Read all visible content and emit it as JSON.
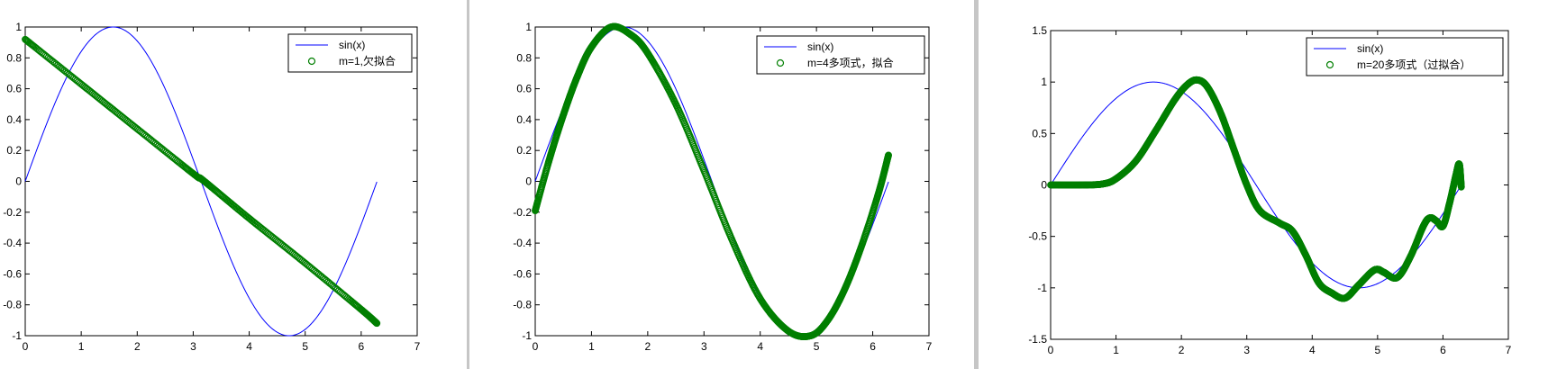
{
  "colors": {
    "sin_line": "#0000ff",
    "fit_markers": "#007f00",
    "window_bg": "#c8c8c8",
    "plot_bg": "#ffffff"
  },
  "chart_data": [
    {
      "type": "scatter",
      "title": "",
      "xlabel": "",
      "ylabel": "",
      "xlim": [
        0,
        7
      ],
      "ylim": [
        -1,
        1
      ],
      "xticks": [
        0,
        1,
        2,
        3,
        4,
        5,
        6,
        7
      ],
      "yticks": [
        -1,
        -0.8,
        -0.6,
        -0.4,
        -0.2,
        0,
        0.2,
        0.4,
        0.6,
        0.8,
        1
      ],
      "legend_position": "top-right",
      "series": [
        {
          "name": "sin(x)",
          "kind": "line",
          "x": [
            0,
            0.39,
            0.79,
            1.18,
            1.57,
            1.96,
            2.36,
            2.75,
            3.14,
            3.53,
            3.93,
            4.32,
            4.71,
            5.11,
            5.5,
            5.89,
            6.28
          ],
          "y": [
            0,
            0.383,
            0.707,
            0.924,
            1,
            0.924,
            0.707,
            0.383,
            0,
            -0.383,
            -0.707,
            -0.924,
            -1,
            -0.924,
            -0.707,
            -0.383,
            0
          ]
        },
        {
          "name": "m=1,欠拟合",
          "kind": "markers",
          "x": [
            0,
            1,
            2,
            3,
            3.2,
            4,
            5,
            6,
            6.28
          ],
          "y": [
            0.92,
            0.63,
            0.34,
            0.05,
            0,
            -0.24,
            -0.53,
            -0.83,
            -0.92
          ]
        }
      ]
    },
    {
      "type": "scatter",
      "title": "",
      "xlabel": "",
      "ylabel": "",
      "xlim": [
        0,
        7
      ],
      "ylim": [
        -1,
        1
      ],
      "xticks": [
        0,
        1,
        2,
        3,
        4,
        5,
        6,
        7
      ],
      "yticks": [
        -1,
        -0.8,
        -0.6,
        -0.4,
        -0.2,
        0,
        0.2,
        0.4,
        0.6,
        0.8,
        1
      ],
      "legend_position": "top-right",
      "series": [
        {
          "name": "sin(x)",
          "kind": "line",
          "x": [
            0,
            0.39,
            0.79,
            1.18,
            1.57,
            1.96,
            2.36,
            2.75,
            3.14,
            3.53,
            3.93,
            4.32,
            4.71,
            5.11,
            5.5,
            5.89,
            6.28
          ],
          "y": [
            0,
            0.383,
            0.707,
            0.924,
            1,
            0.924,
            0.707,
            0.383,
            0,
            -0.383,
            -0.707,
            -0.924,
            -1,
            -0.924,
            -0.707,
            -0.383,
            0
          ]
        },
        {
          "name": "m=4多项式，拟合",
          "kind": "markers",
          "x": [
            0,
            0.25,
            0.5,
            0.75,
            1,
            1.35,
            1.7,
            2,
            2.5,
            3,
            3.5,
            4,
            4.5,
            4.9,
            5.2,
            5.5,
            5.8,
            6.1,
            6.28
          ],
          "y": [
            -0.19,
            0.14,
            0.43,
            0.68,
            0.87,
            1.0,
            0.95,
            0.83,
            0.5,
            0.07,
            -0.38,
            -0.76,
            -0.97,
            -1.0,
            -0.9,
            -0.7,
            -0.42,
            -0.08,
            0.17
          ]
        }
      ]
    },
    {
      "type": "scatter",
      "title": "",
      "xlabel": "",
      "ylabel": "",
      "xlim": [
        0,
        7
      ],
      "ylim": [
        -1.5,
        1.5
      ],
      "xticks": [
        0,
        1,
        2,
        3,
        4,
        5,
        6,
        7
      ],
      "yticks": [
        -1.5,
        -1,
        -0.5,
        0,
        0.5,
        1,
        1.5
      ],
      "legend_position": "top-right",
      "series": [
        {
          "name": "sin(x)",
          "kind": "line",
          "x": [
            0,
            0.39,
            0.79,
            1.18,
            1.57,
            1.96,
            2.36,
            2.75,
            3.14,
            3.53,
            3.93,
            4.32,
            4.71,
            5.11,
            5.5,
            5.89,
            6.28
          ],
          "y": [
            0,
            0.383,
            0.707,
            0.924,
            1,
            0.924,
            0.707,
            0.383,
            0,
            -0.383,
            -0.707,
            -0.924,
            -1,
            -0.924,
            -0.707,
            -0.383,
            0
          ]
        },
        {
          "name": "m=20多项式（过拟合）",
          "kind": "markers",
          "x": [
            0,
            0.5,
            0.8,
            1.0,
            1.3,
            1.6,
            1.9,
            2.1,
            2.25,
            2.4,
            2.6,
            2.8,
            3.0,
            3.2,
            3.5,
            3.7,
            3.9,
            4.1,
            4.3,
            4.5,
            4.7,
            4.9,
            5.0,
            5.1,
            5.3,
            5.5,
            5.7,
            5.8,
            5.9,
            6.0,
            6.1,
            6.2,
            6.25,
            6.28
          ],
          "y": [
            0,
            0,
            0.01,
            0.06,
            0.23,
            0.52,
            0.83,
            0.98,
            1.02,
            0.95,
            0.7,
            0.35,
            0.0,
            -0.25,
            -0.37,
            -0.45,
            -0.68,
            -0.95,
            -1.05,
            -1.1,
            -0.98,
            -0.85,
            -0.82,
            -0.85,
            -0.9,
            -0.7,
            -0.4,
            -0.32,
            -0.35,
            -0.4,
            -0.18,
            0.1,
            0.2,
            -0.02
          ]
        }
      ]
    }
  ]
}
